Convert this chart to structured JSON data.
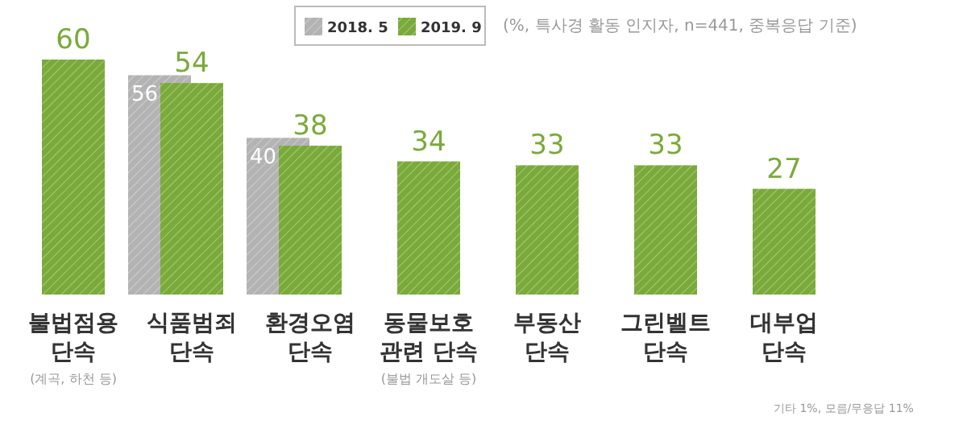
{
  "chart_data": {
    "type": "bar",
    "categories": [
      "불법점용\n단속",
      "식품범죄\n단속",
      "환경오염\n단속",
      "동물보호\n관련 단속",
      "부동산\n단속",
      "그린벨트\n단속",
      "대부업\n단속"
    ],
    "series": [
      {
        "name": "2018. 5",
        "color": "#b3b3b3",
        "values": [
          null,
          56,
          40,
          null,
          null,
          null,
          null
        ]
      },
      {
        "name": "2019. 9",
        "color": "#7aaa3a",
        "values": [
          60,
          54,
          38,
          34,
          33,
          33,
          27
        ]
      }
    ],
    "data_labels": true,
    "legend": "top",
    "annotations": [
      "(%, 특사경 활동 인지자, n=441, 중복응답 기준)",
      "기타 1%, 모름/무응답 11%",
      "(계곡, 하천 등)",
      "(불법 개도살 등)"
    ]
  }
}
